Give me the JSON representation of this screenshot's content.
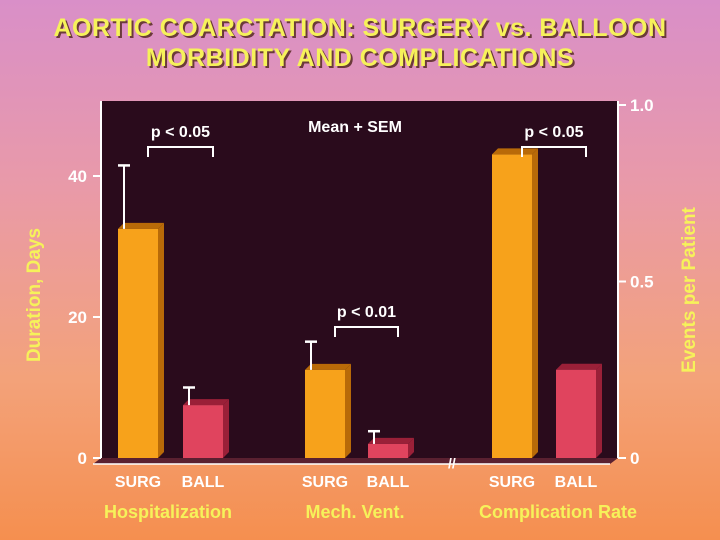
{
  "title_line1": "AORTIC COARCTATION: SURGERY vs. BALLOON",
  "title_line2": "MORBIDITY  AND COMPLICATIONS",
  "chart_data": {
    "type": "bar",
    "legend_note": "Mean + SEM",
    "left_axis": {
      "label": "Duration, Days",
      "ticks": [
        0,
        20,
        40
      ],
      "range": [
        0,
        50
      ]
    },
    "right_axis": {
      "label": "Events per Patient",
      "ticks": [
        "0",
        "0.5",
        "1.0"
      ],
      "range": [
        0,
        1.0
      ]
    },
    "groups": [
      {
        "name": "Hospitalization",
        "axis": "left",
        "p_label": "p < 0.05",
        "bars": [
          {
            "label": "SURG",
            "value": 32.5,
            "sem": 9.0
          },
          {
            "label": "BALL",
            "value": 7.5,
            "sem": 2.5
          }
        ]
      },
      {
        "name": "Mech. Vent.",
        "axis": "left",
        "p_label": "p < 0.01",
        "bars": [
          {
            "label": "SURG",
            "value": 12.5,
            "sem": 4.0
          },
          {
            "label": "BALL",
            "value": 2.0,
            "sem": 1.8
          }
        ]
      },
      {
        "name": "Complication Rate",
        "axis": "right",
        "p_label": "p < 0.05",
        "bars": [
          {
            "label": "SURG",
            "value": 0.86,
            "sem": 0
          },
          {
            "label": "BALL",
            "value": 0.25,
            "sem": 0
          }
        ]
      }
    ],
    "colors": {
      "surg": "#f7a21b",
      "ball": "#e0445e",
      "plot_bg": "#2a0b1c",
      "text": "#f6f25a",
      "axis_text": "#ffffff"
    }
  }
}
